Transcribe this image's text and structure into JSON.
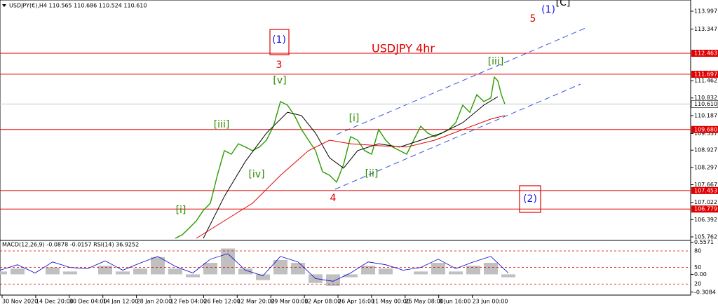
{
  "header": "USDJPY(€),H4 110.565 110.686 110.524 110.610",
  "chart_data": {
    "type": "line",
    "title": "USDJPY 4hr",
    "ylim": [
      105.634,
      114.406
    ],
    "xlim": [
      0,
      985
    ],
    "yticks": [
      113.997,
      113.347,
      111.462,
      110.832,
      110.187,
      109.537,
      108.927,
      108.297,
      107.667,
      107.022,
      106.392,
      105.762
    ],
    "levels": [
      112.463,
      111.697,
      {
        "value": 109.68,
        "label": "109.680"
      },
      107.453,
      106.779
    ],
    "level_color": "#e00000",
    "last_price": {
      "value": 110.61,
      "label": "110.610"
    },
    "series": [
      {
        "color": "#2a9d00",
        "x": [
          250,
          260,
          270,
          280,
          290,
          300,
          310,
          320,
          330,
          340,
          350,
          360,
          370,
          380,
          390,
          400,
          410,
          420,
          430,
          440,
          450,
          460,
          470,
          480,
          490,
          500,
          510,
          520,
          530,
          540,
          550,
          560,
          570,
          580,
          590,
          600,
          610,
          620,
          630,
          640,
          650,
          660,
          670,
          680,
          690,
          700,
          705,
          710,
          715,
          720
        ],
        "values": [
          105.71,
          105.84,
          106.09,
          106.35,
          106.73,
          106.99,
          108.01,
          108.91,
          108.78,
          109.16,
          109.04,
          108.91,
          109.04,
          109.29,
          109.8,
          110.7,
          110.57,
          110.19,
          109.68,
          109.29,
          108.91,
          108.14,
          108.01,
          107.76,
          108.4,
          109.42,
          109.29,
          108.91,
          108.78,
          109.68,
          109.29,
          109.04,
          108.91,
          108.78,
          109.29,
          109.8,
          109.55,
          109.42,
          109.55,
          109.68,
          109.93,
          110.57,
          110.31,
          110.95,
          110.7,
          110.83,
          111.59,
          111.46,
          110.95,
          110.61
        ]
      },
      {
        "color": "#000000",
        "x": [
          290,
          320,
          350,
          380,
          410,
          430,
          450,
          470,
          490,
          510,
          540,
          570,
          600,
          630,
          660,
          690,
          710
        ],
        "values": [
          105.71,
          107.24,
          108.52,
          109.55,
          110.31,
          110.19,
          109.55,
          108.65,
          108.27,
          108.91,
          109.16,
          109.04,
          109.29,
          109.55,
          109.93,
          110.57,
          110.88
        ]
      },
      {
        "color": "#e00000",
        "x": [
          280,
          320,
          360,
          400,
          440,
          470,
          500,
          540,
          580,
          620,
          660,
          700,
          720
        ],
        "values": [
          105.71,
          106.35,
          106.99,
          108.01,
          108.91,
          109.29,
          109.16,
          109.09,
          109.04,
          109.29,
          109.68,
          110.06,
          110.19
        ]
      }
    ],
    "x_labels": [
      "30 Nov 2020",
      "14 Dec 20:00",
      "30 Dec 04:00",
      "14 Jan 12:00",
      "28 Jan 20:00",
      "12 Feb 04:00",
      "26 Feb 12:00",
      "12 Mar 20:00",
      "29 Mar 00:00",
      "12 Apr 08:00",
      "26 Apr 16:00",
      "11 May 00:00",
      "25 May 08:00",
      "8 Jun 16:00",
      "23 Jun 00:00"
    ],
    "annotations": [
      {
        "text": "(1)",
        "color": "#1a1ae6"
      },
      {
        "text": "3",
        "color": "#e00000"
      },
      {
        "text": "[v]",
        "color": "#2a8a00"
      },
      {
        "text": "[iii]",
        "color": "#2a8a00"
      },
      {
        "text": "[iv]",
        "color": "#2a8a00"
      },
      {
        "text": "[i]",
        "color": "#2a8a00"
      },
      {
        "text": "[ii]",
        "color": "#2a8a00"
      },
      {
        "text": "4",
        "color": "#e00000"
      },
      {
        "text": "[iii]",
        "color": "#2a8a00"
      },
      {
        "text": "5",
        "color": "#e00000"
      },
      {
        "text": "(1)",
        "color": "#1a1ae6"
      },
      {
        "text": "[C]",
        "color": "#000000"
      },
      {
        "text": "(2)",
        "color": "#1a1ae6"
      },
      {
        "text": "[i]",
        "color": "#2a8a00"
      }
    ],
    "indicator": {
      "label": "MACD(12,26,9) -0.0878 -0.0157 RSI(14) 36.9252",
      "macd_lim": [
        -0.36,
        0.59
      ],
      "macd_ticks": [
        0.5571,
        {
          "value": 0,
          "label": "0.00"
        },
        -0.3084
      ],
      "rsi_lim": [
        0,
        99
      ],
      "rsi_ticks": [
        80,
        50,
        20
      ],
      "x": [
        0,
        25,
        50,
        75,
        100,
        125,
        150,
        175,
        200,
        225,
        250,
        275,
        300,
        325,
        350,
        375,
        400,
        425,
        450,
        475,
        500,
        525,
        550,
        575,
        600,
        625,
        650,
        675,
        700,
        725
      ],
      "rsi": [
        45,
        55,
        40,
        60,
        50,
        48,
        62,
        45,
        58,
        70,
        52,
        40,
        65,
        75,
        45,
        35,
        70,
        60,
        30,
        25,
        40,
        60,
        55,
        45,
        50,
        65,
        48,
        60,
        70,
        40
      ],
      "macd": [
        0.05,
        0.1,
        0,
        0.12,
        0.05,
        0,
        0.15,
        0.05,
        0.1,
        0.3,
        0.1,
        -0.05,
        0.2,
        0.45,
        0.1,
        -0.1,
        0.25,
        0.2,
        -0.15,
        -0.2,
        -0.05,
        0.15,
        0.1,
        0,
        0.05,
        0.2,
        0.05,
        0.15,
        0.2,
        -0.05
      ],
      "rsi_color": "#0000cc",
      "macd_color": "#c0c0c0"
    }
  }
}
